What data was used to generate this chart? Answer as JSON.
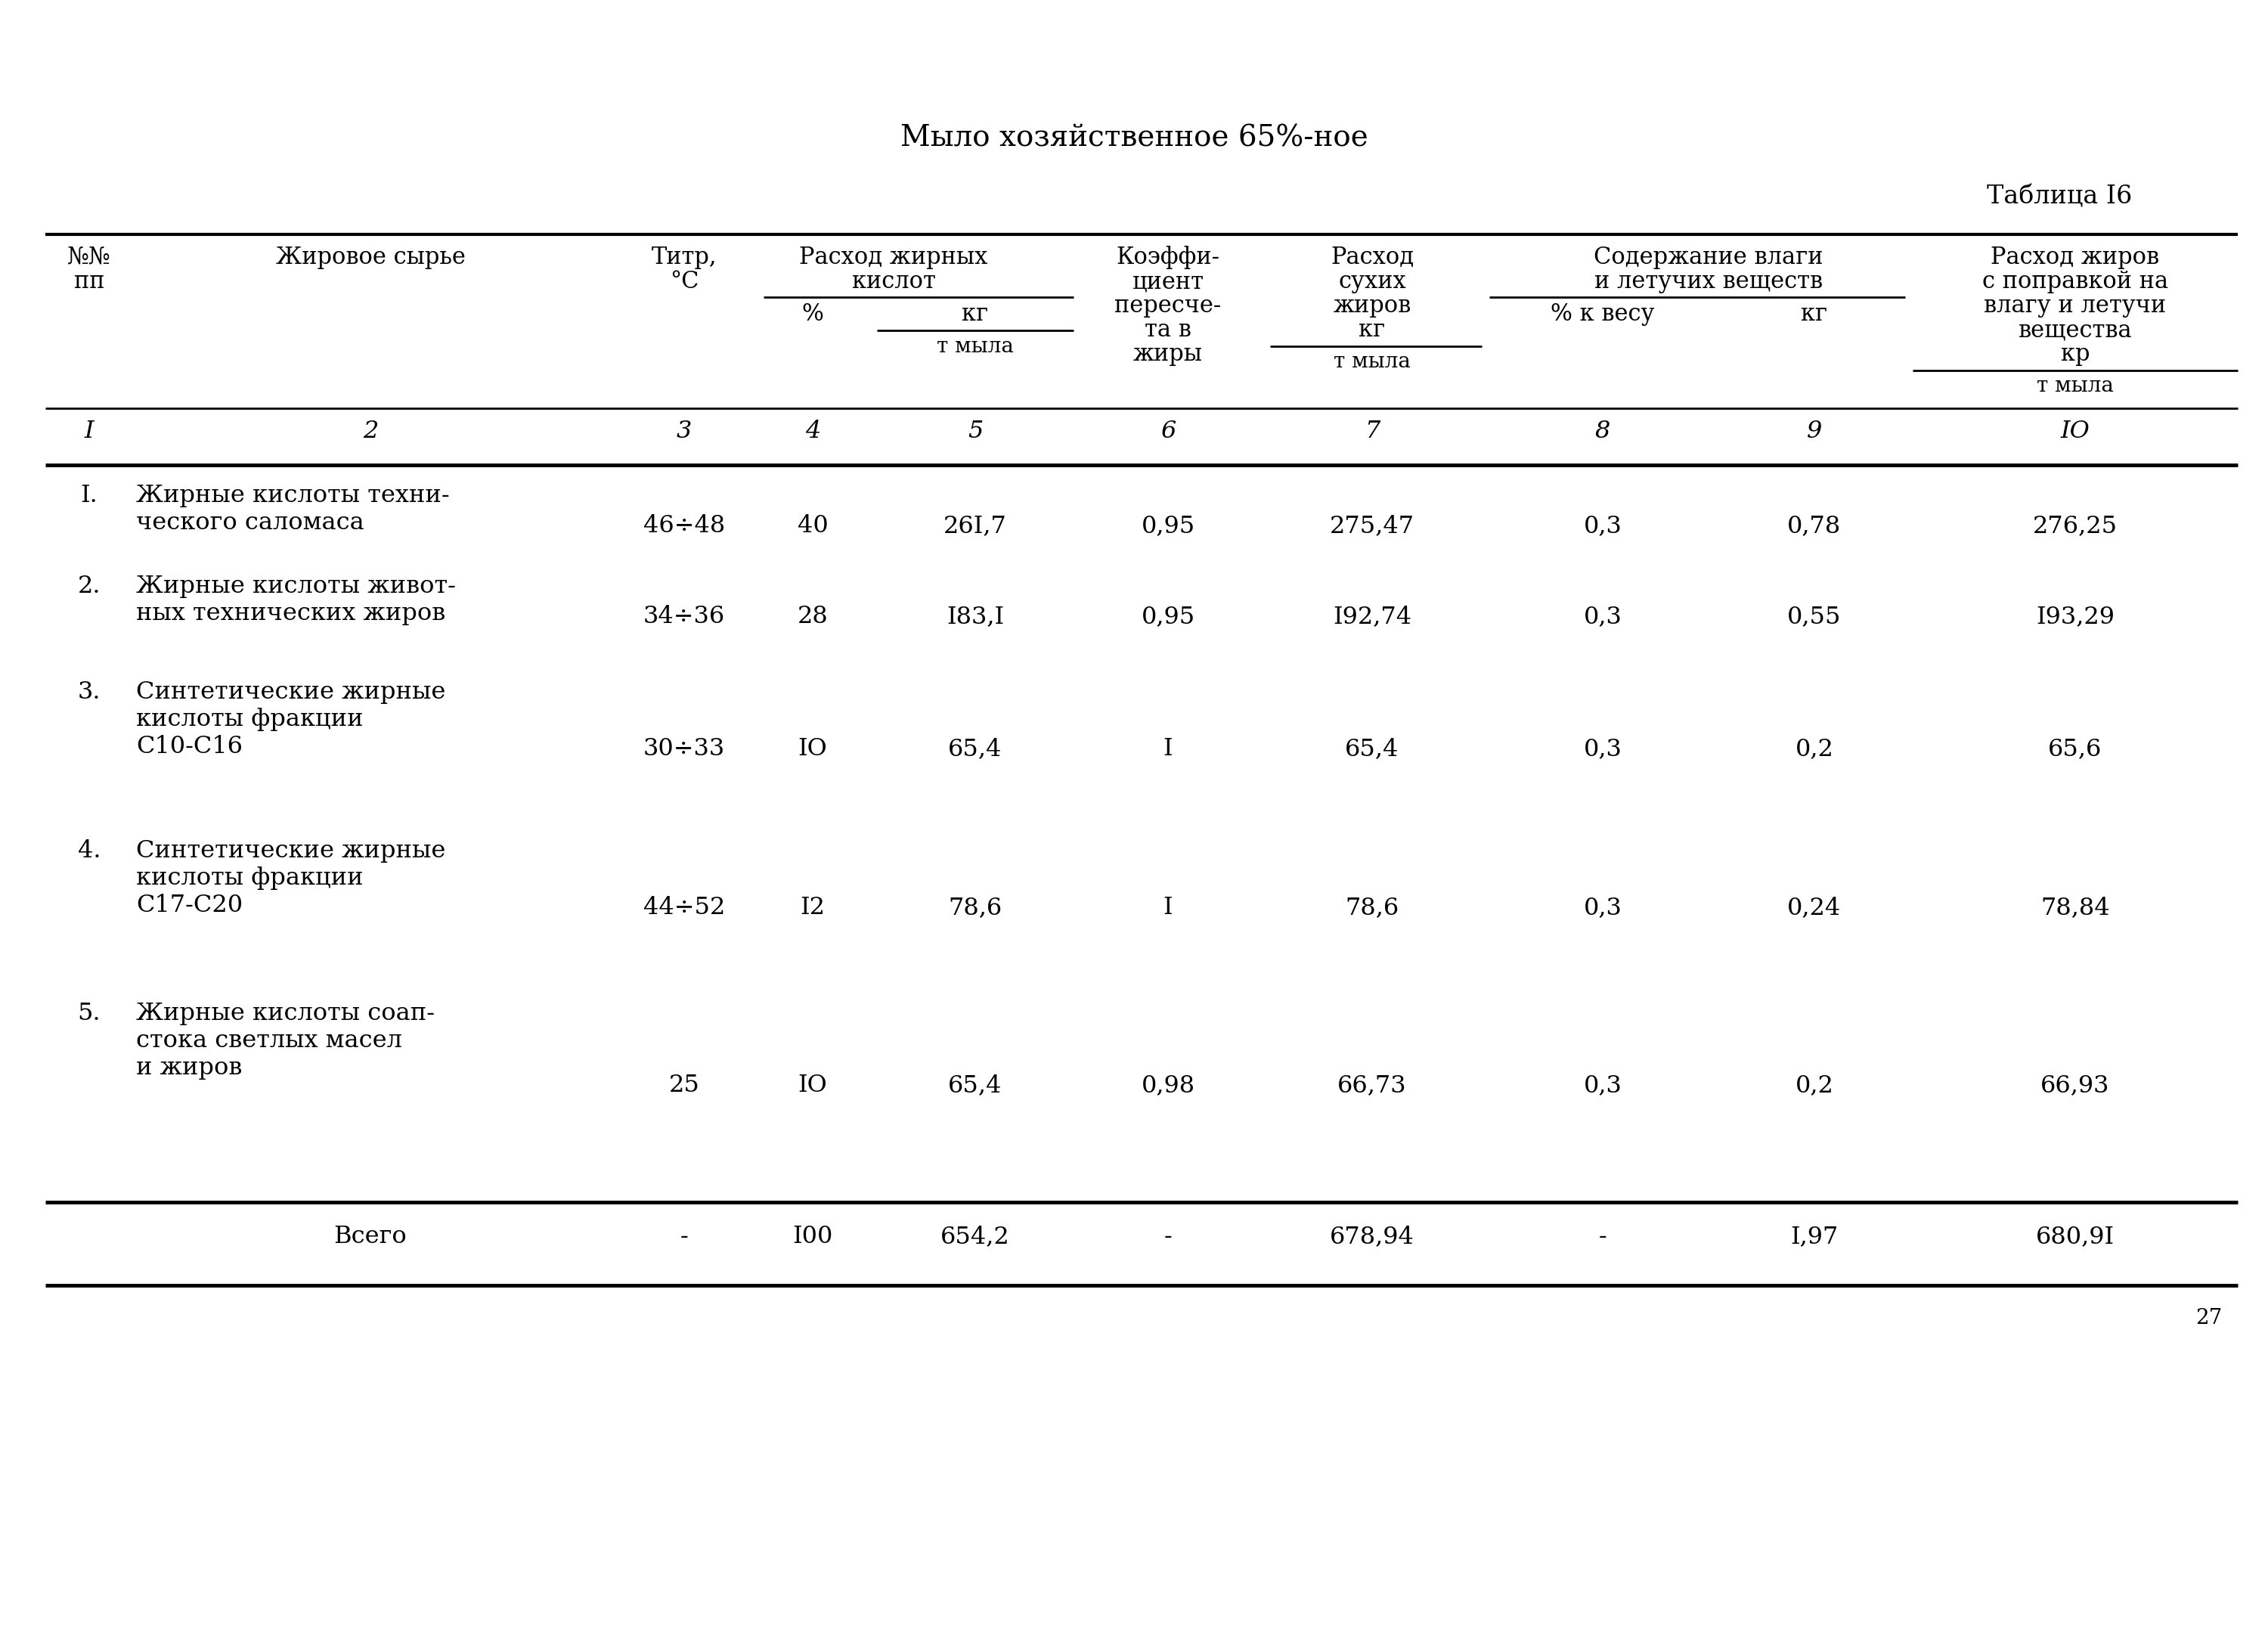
{
  "title": "Мыло хозяйственное 65%-ное",
  "table_label": "Таблица I6",
  "page_number": "27",
  "bg_color": "#ffffff",
  "text_color": "#000000",
  "col_numbers": [
    "I",
    "2",
    "3",
    "4",
    "5",
    "6",
    "7",
    "8",
    "9",
    "IO"
  ],
  "rows": [
    {
      "num": "I.",
      "name_lines": [
        "Жирные кислоты техни-",
        "ческого саломаса"
      ],
      "titr": "46÷48",
      "pct": "40",
      "kg_t": "26I,7",
      "koef": "0,95",
      "rashod_sux": "275,47",
      "pct_ves": "0,3",
      "kg2": "0,78",
      "rashod_pop": "276,25"
    },
    {
      "num": "2.",
      "name_lines": [
        "Жирные кислоты живот-",
        "ных технических жиров"
      ],
      "titr": "34÷36",
      "pct": "28",
      "kg_t": "I83,I",
      "koef": "0,95",
      "rashod_sux": "I92,74",
      "pct_ves": "0,3",
      "kg2": "0,55",
      "rashod_pop": "I93,29"
    },
    {
      "num": "3.",
      "name_lines": [
        "Синтетические жирные",
        "кислоты фракции",
        "С10-С16"
      ],
      "titr": "30÷33",
      "pct": "IO",
      "kg_t": "65,4",
      "koef": "I",
      "rashod_sux": "65,4",
      "pct_ves": "0,3",
      "kg2": "0,2",
      "rashod_pop": "65,6"
    },
    {
      "num": "4.",
      "name_lines": [
        "Синтетические жирные",
        "кислоты фракции",
        "С17-С20"
      ],
      "titr": "44÷52",
      "pct": "I2",
      "kg_t": "78,6",
      "koef": "I",
      "rashod_sux": "78,6",
      "pct_ves": "0,3",
      "kg2": "0,24",
      "rashod_pop": "78,84"
    },
    {
      "num": "5.",
      "name_lines": [
        "Жирные кислоты соап-",
        "стока светлых масел",
        "и жиров"
      ],
      "titr": "25",
      "pct": "IO",
      "kg_t": "65,4",
      "koef": "0,98",
      "rashod_sux": "66,73",
      "pct_ves": "0,3",
      "kg2": "0,2",
      "rashod_pop": "66,93"
    }
  ],
  "total_row": {
    "label": "Всего",
    "titr": "-",
    "pct": "I00",
    "kg_t": "654,2",
    "koef": "-",
    "rashod_sux": "678,94",
    "pct_ves": "-",
    "kg2": "I,97",
    "rashod_pop": "680,9I"
  }
}
